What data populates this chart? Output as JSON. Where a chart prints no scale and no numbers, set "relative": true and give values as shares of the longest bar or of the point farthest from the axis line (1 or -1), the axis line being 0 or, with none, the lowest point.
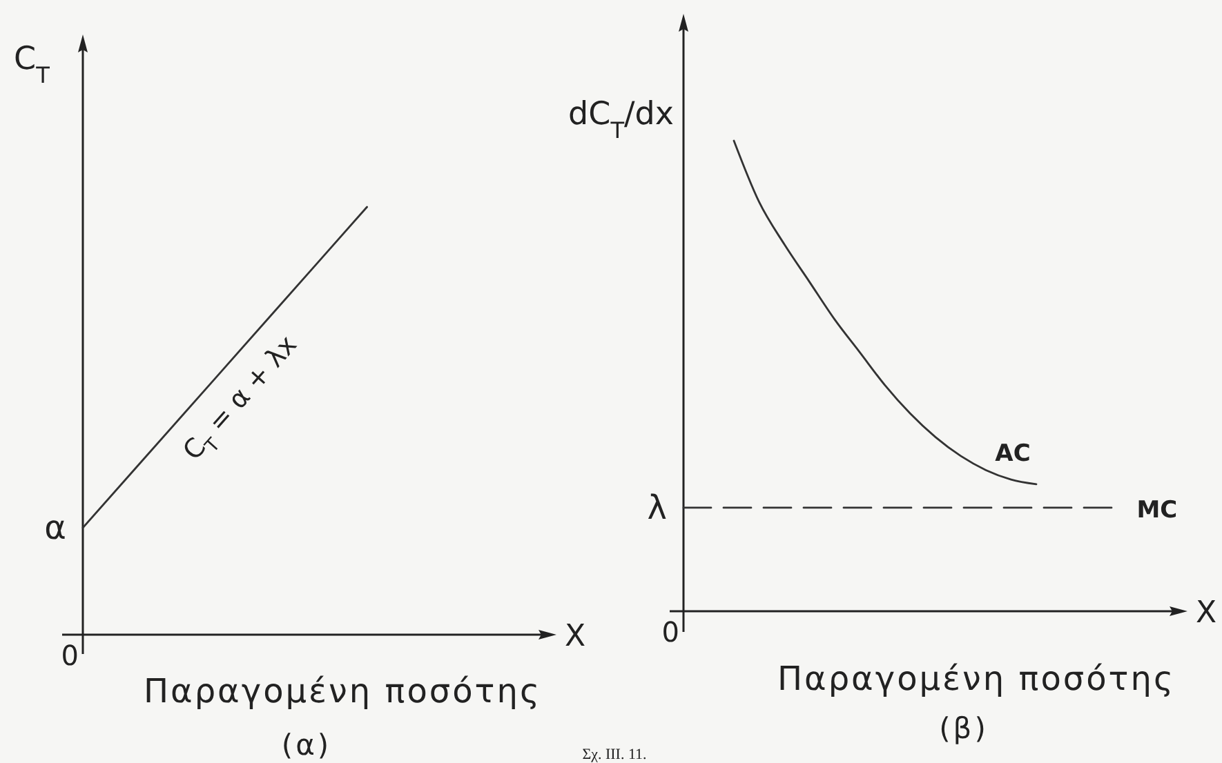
{
  "chart_data": [
    {
      "type": "line",
      "title": "(α)",
      "xlabel": "Παραγομένη ποσότης",
      "ylabel": "C$_{T}$",
      "relative": true,
      "categories": [
        null,
        null,
        null,
        null,
        null,
        null
      ],
      "series": [
        {
          "name": "C$_{T}$ = α + λx",
          "color": "#333333",
          "values": [
            0.25,
            0.5,
            0.75,
            1,
            null,
            null
          ]
        }
      ],
      "annotations": [
        "α",
        "0",
        "X",
        "Σχ. III. 11."
      ]
    },
    {
      "type": "line",
      "title": "(β)",
      "xlabel": "Παραγομένη ποσότης",
      "ylabel": "dC$_{T}$/dx",
      "relative": true,
      "categories": [
        null,
        null,
        null,
        null,
        null,
        null,
        null,
        null,
        null,
        null,
        null,
        null,
        null,
        null,
        null,
        null,
        null,
        null,
        null,
        null,
        null
      ],
      "series": [
        {
          "name": "AC",
          "color": "#333333",
          "values": [
            null,
            null,
            1,
            0.87,
            0.78,
            0.7,
            0.62,
            0.55,
            0.48,
            0.42,
            0.37,
            0.33,
            0.3,
            0.28,
            0.27,
            null,
            null,
            null,
            null,
            null,
            null
          ]
        },
        {
          "name": "MC",
          "color": "#333333",
          "line_style": "dashed",
          "values": [
            0.22,
            0.22,
            0.22,
            0.22,
            0.22,
            0.22,
            0.22,
            0.22,
            0.22,
            0.22,
            0.22,
            0.22,
            0.22,
            0.22,
            0.22,
            0.22,
            0.22,
            0.22,
            null,
            null,
            null
          ]
        }
      ],
      "annotations": [
        "λ",
        "0",
        "X"
      ]
    }
  ]
}
